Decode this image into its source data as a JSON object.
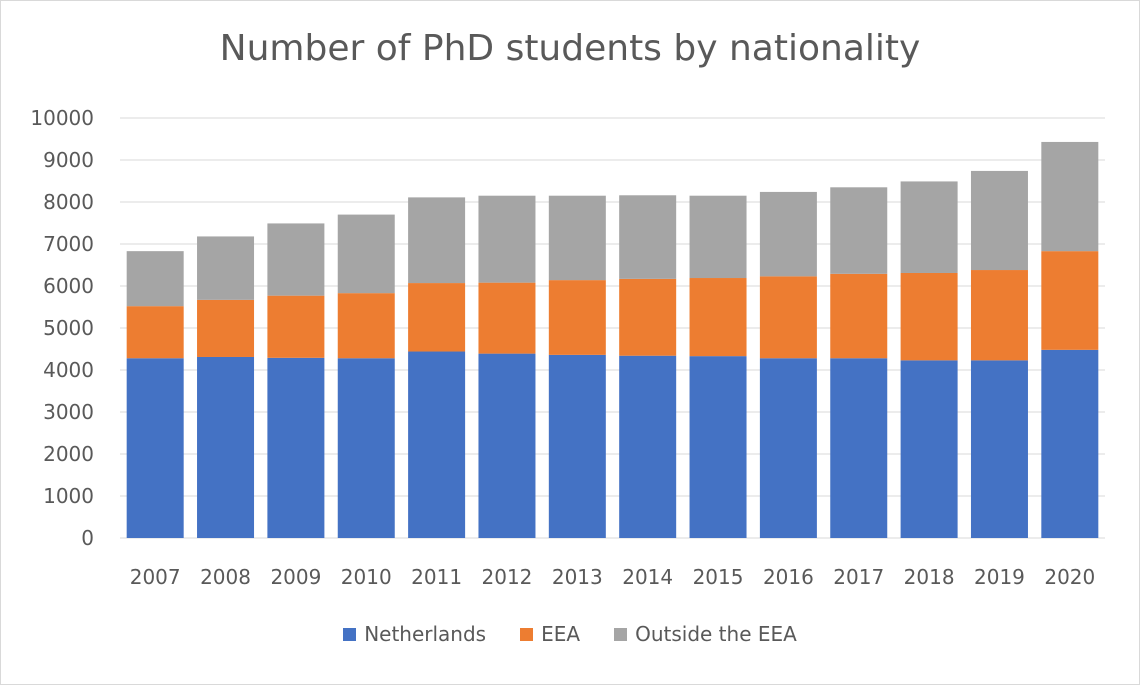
{
  "chart_data": {
    "type": "bar",
    "stacked": true,
    "title": "Number of PhD students by nationality",
    "xlabel": "",
    "ylabel": "",
    "ylim": [
      0,
      10000
    ],
    "yticks": [
      0,
      1000,
      2000,
      3000,
      4000,
      5000,
      6000,
      7000,
      8000,
      9000,
      10000
    ],
    "grid": true,
    "legend_position": "bottom",
    "categories": [
      "2007",
      "2008",
      "2009",
      "2010",
      "2011",
      "2012",
      "2013",
      "2014",
      "2015",
      "2016",
      "2017",
      "2018",
      "2019",
      "2020"
    ],
    "series": [
      {
        "name": "Netherlands",
        "color": "#4472c4",
        "values": [
          4280,
          4310,
          4290,
          4280,
          4440,
          4390,
          4360,
          4340,
          4330,
          4280,
          4280,
          4230,
          4230,
          4480
        ]
      },
      {
        "name": "EEA",
        "color": "#ed7d31",
        "values": [
          1240,
          1360,
          1480,
          1550,
          1630,
          1690,
          1780,
          1830,
          1860,
          1950,
          2010,
          2080,
          2150,
          2350
        ]
      },
      {
        "name": "Outside the EEA",
        "color": "#a5a5a5",
        "values": [
          1310,
          1510,
          1720,
          1870,
          2040,
          2070,
          2010,
          1990,
          1960,
          2010,
          2060,
          2180,
          2360,
          2600
        ]
      }
    ]
  }
}
